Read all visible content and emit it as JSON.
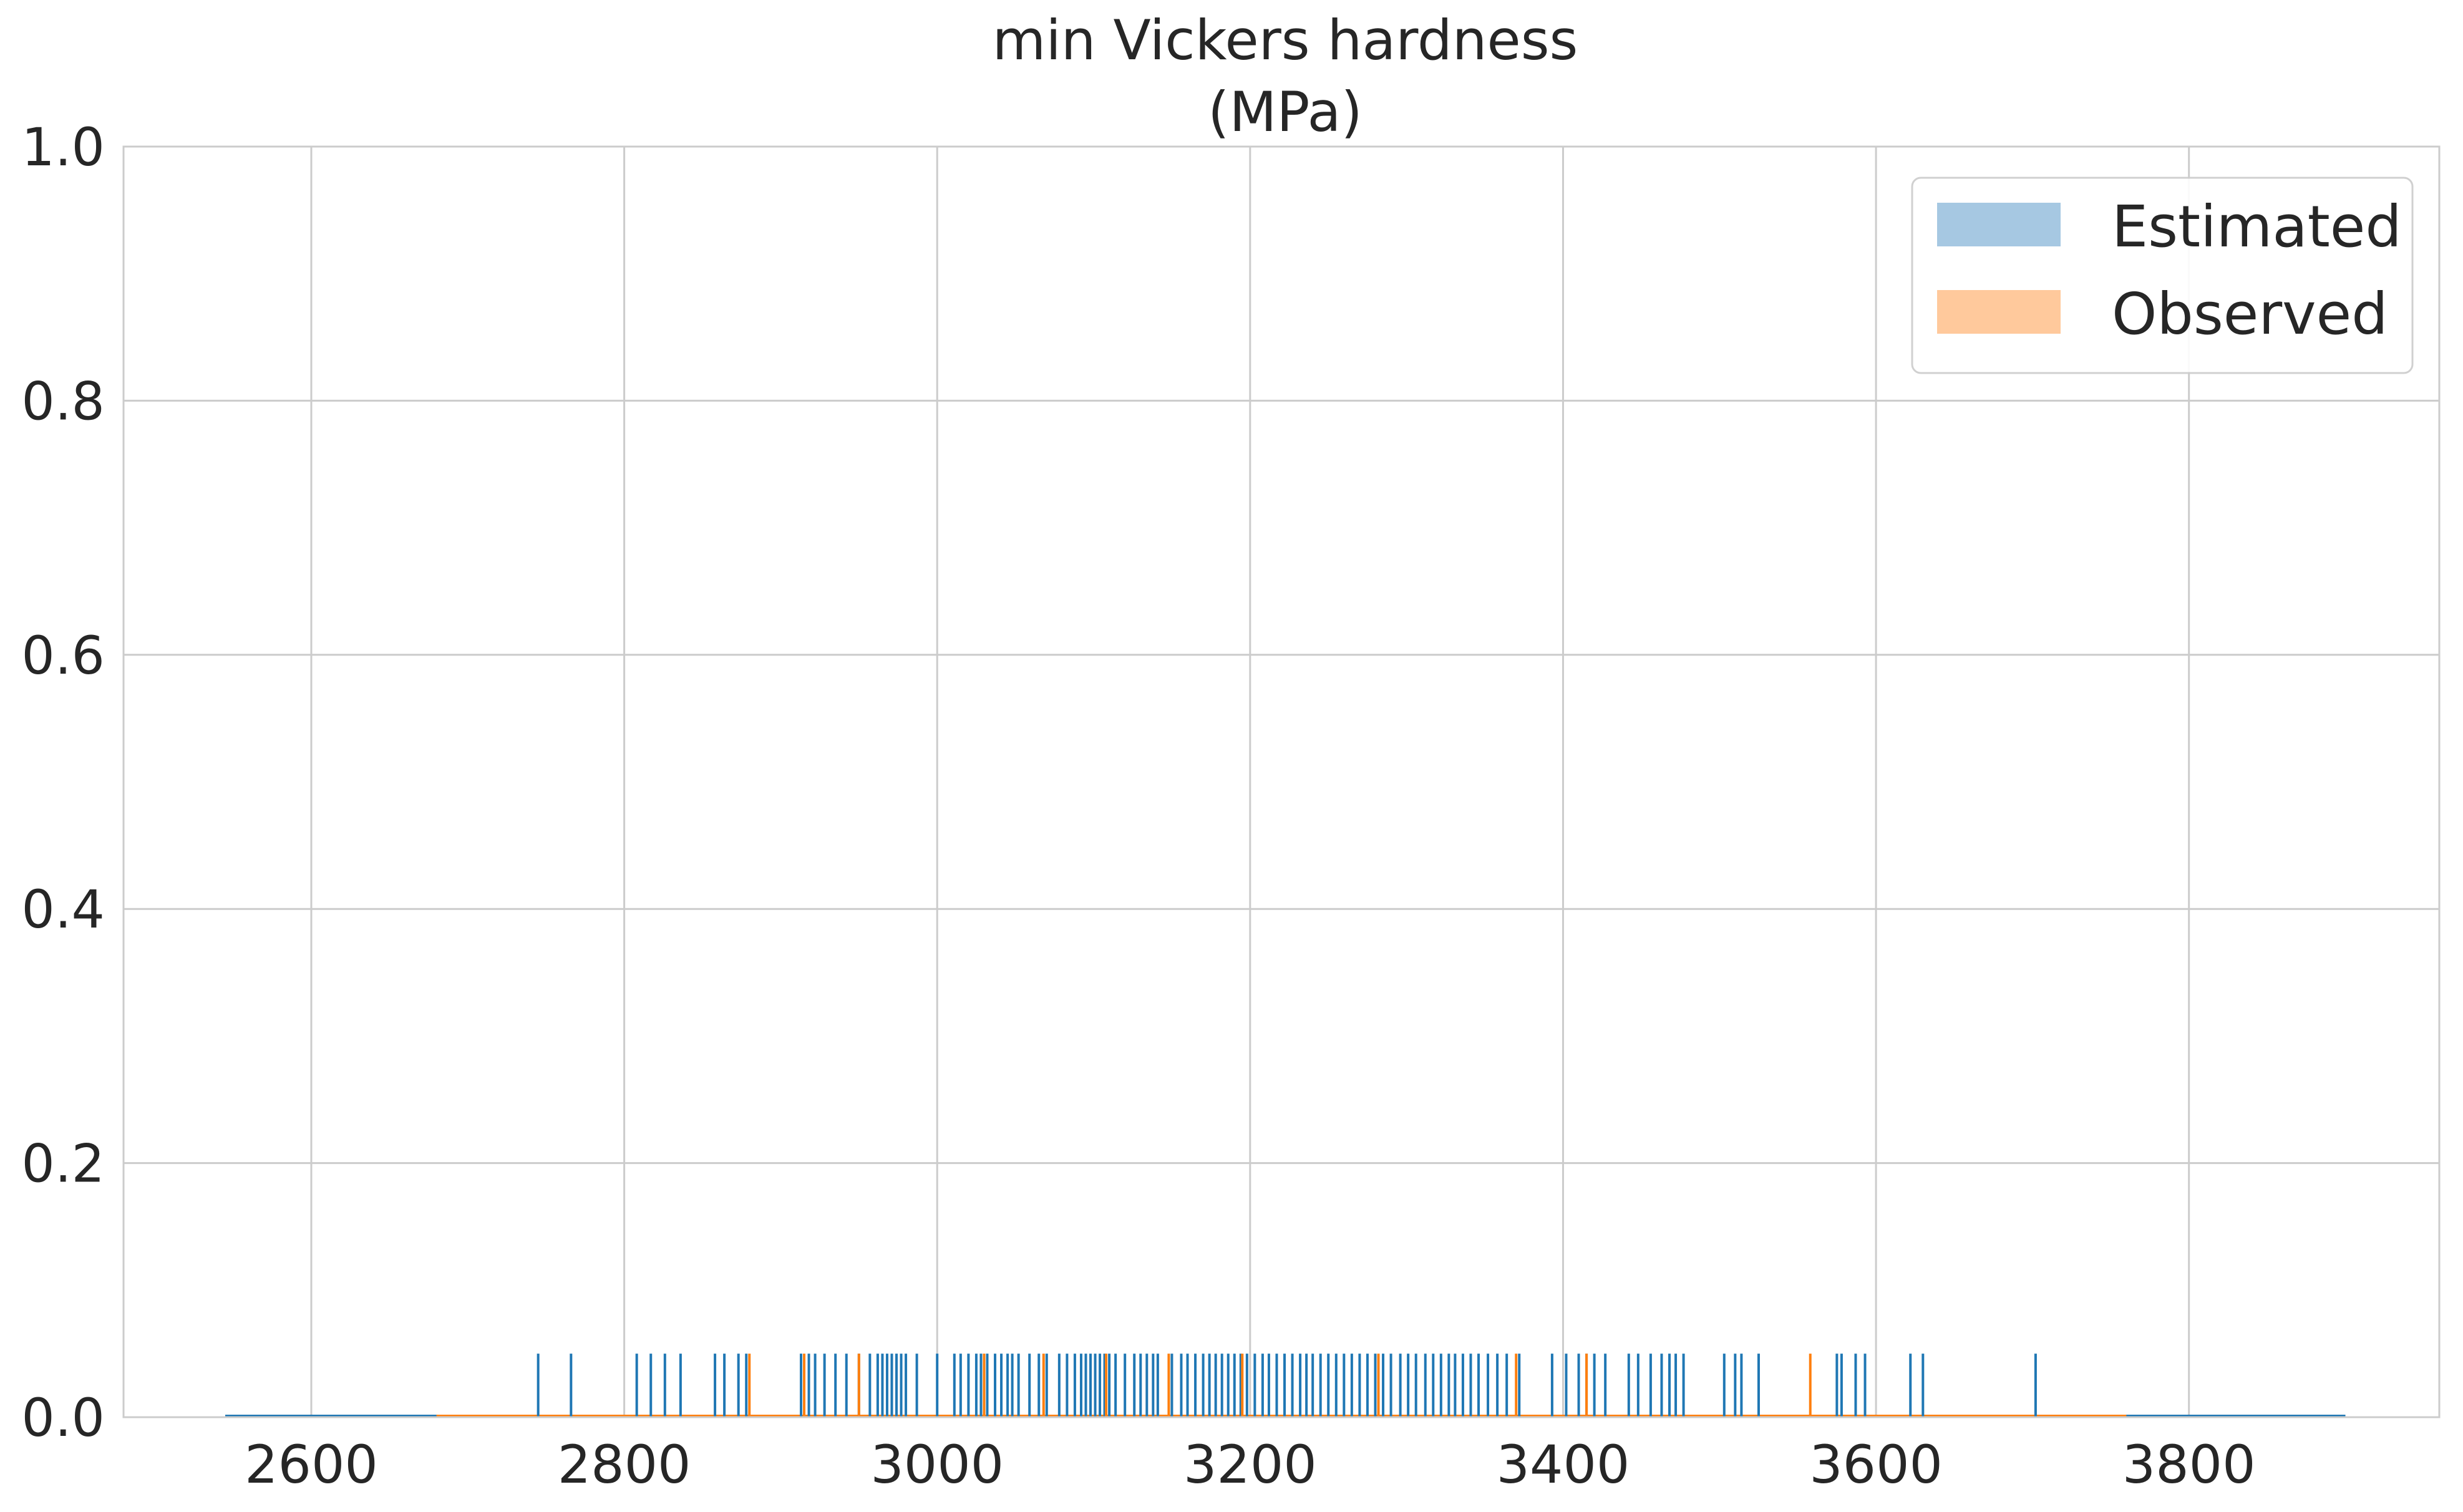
{
  "chart_data": {
    "type": "rug+kde",
    "title": "min Vickers hardness\n(MPa)",
    "title_lines": [
      "min Vickers hardness",
      "(MPa)"
    ],
    "xlabel": "",
    "ylabel": "",
    "xlim": [
      2480,
      3960
    ],
    "ylim": [
      0,
      1.0
    ],
    "x_ticks": [
      2600,
      2800,
      3000,
      3200,
      3400,
      3600,
      3800
    ],
    "y_ticks": [
      0.0,
      0.2,
      0.4,
      0.6,
      0.8,
      1.0
    ],
    "x_tick_labels": [
      "2600",
      "2800",
      "3000",
      "3200",
      "3400",
      "3600",
      "3800"
    ],
    "y_tick_labels": [
      "0.0",
      "0.2",
      "0.4",
      "0.6",
      "0.8",
      "1.0"
    ],
    "grid": true,
    "legend_position": "top-right",
    "rug_height": 0.05,
    "series": [
      {
        "name": "Estimated",
        "color": "#1f77b4",
        "legend_color": "#a6c8e2",
        "density_range": [
          2545,
          3900
        ],
        "rug": [
          2745,
          2766,
          2808,
          2817,
          2826,
          2836,
          2858,
          2864,
          2873,
          2878,
          2913,
          2918,
          2922,
          2928,
          2935,
          2942,
          2950,
          2957,
          2962,
          2965,
          2968,
          2971,
          2974,
          2977,
          2980,
          2987,
          3000,
          3011,
          3015,
          3020,
          3025,
          3028,
          3032,
          3037,
          3041,
          3045,
          3048,
          3052,
          3059,
          3065,
          3070,
          3078,
          3083,
          3088,
          3092,
          3095,
          3098,
          3101,
          3104,
          3107,
          3110,
          3114,
          3120,
          3126,
          3130,
          3134,
          3138,
          3141,
          3150,
          3156,
          3160,
          3165,
          3170,
          3174,
          3178,
          3182,
          3186,
          3190,
          3194,
          3198,
          3203,
          3208,
          3212,
          3217,
          3222,
          3227,
          3232,
          3236,
          3240,
          3245,
          3250,
          3255,
          3260,
          3265,
          3270,
          3275,
          3280,
          3285,
          3290,
          3296,
          3301,
          3306,
          3312,
          3317,
          3322,
          3327,
          3331,
          3336,
          3341,
          3346,
          3352,
          3358,
          3364,
          3372,
          3393,
          3402,
          3410,
          3415,
          3420,
          3427,
          3442,
          3448,
          3456,
          3463,
          3468,
          3472,
          3477,
          3503,
          3510,
          3514,
          3525,
          3575,
          3578,
          3587,
          3593,
          3622,
          3630,
          3702
        ]
      },
      {
        "name": "Observed",
        "color": "#ff7f0e",
        "legend_color": "#ffc99c",
        "density_range": [
          2680,
          3760
        ],
        "rug": [
          2880,
          2915,
          2950,
          3030,
          3068,
          3108,
          3148,
          3195,
          3282,
          3370,
          3415,
          3558
        ]
      }
    ]
  }
}
